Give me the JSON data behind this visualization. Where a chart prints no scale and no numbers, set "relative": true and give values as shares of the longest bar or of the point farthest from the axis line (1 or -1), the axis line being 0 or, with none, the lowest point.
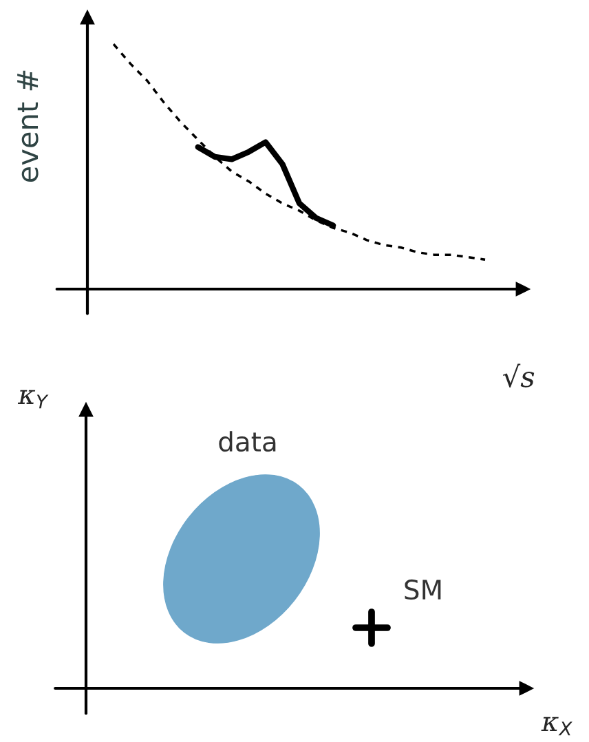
{
  "chart_data": [
    {
      "type": "line",
      "relative": true,
      "xlabel": "√s",
      "ylabel": "event #",
      "categories": [
        null,
        null,
        null,
        null,
        null,
        null,
        null,
        null,
        null,
        null,
        null,
        null,
        null,
        null,
        null,
        null,
        null,
        null,
        null,
        null,
        null,
        null,
        null
      ],
      "series": [
        {
          "color": "#000000",
          "line_style": "dashed",
          "values": [
            1.0,
            0.92,
            0.85,
            0.76,
            0.68,
            0.61,
            0.54,
            0.48,
            0.44,
            0.39,
            0.35,
            0.32,
            0.28,
            0.25,
            0.23,
            0.2,
            0.18,
            0.17,
            0.15,
            0.14,
            0.14,
            0.13,
            0.12
          ]
        },
        {
          "color": "#000000",
          "line_style": "solid",
          "values": [
            null,
            null,
            null,
            null,
            null,
            0.58,
            0.54,
            0.53,
            0.56,
            0.6,
            0.51,
            0.35,
            0.29,
            0.26,
            null,
            null,
            null,
            null,
            null,
            null,
            null,
            null,
            null
          ]
        }
      ]
    },
    {
      "type": "other",
      "xlabel": "κ$_{X}$",
      "ylabel": "κ$_{Y}$",
      "annotations": [
        "data",
        "SM"
      ]
    }
  ]
}
